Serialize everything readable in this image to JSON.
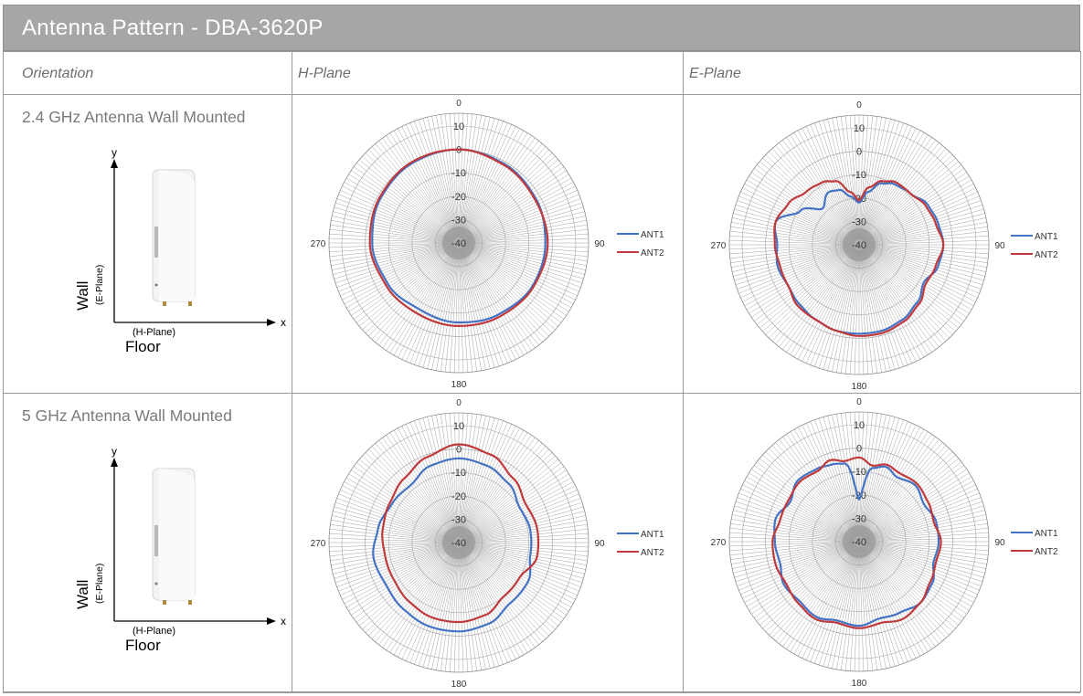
{
  "title": "Antenna Pattern - DBA-3620P",
  "headers": [
    "Orientation",
    "H-Plane",
    "E-Plane"
  ],
  "rows": [
    {
      "label": "2.4 GHz Antenna Wall Mounted",
      "diagram": {
        "wall": "Wall",
        "e_plane": "(E-Plane)",
        "h_plane": "(H-Plane)",
        "floor": "Floor",
        "y": "y",
        "x": "x"
      }
    },
    {
      "label": "5 GHz Antenna Wall Mounted",
      "diagram": {
        "wall": "Wall",
        "e_plane": "(E-Plane)",
        "h_plane": "(H-Plane)",
        "floor": "Floor",
        "y": "y",
        "x": "x"
      }
    }
  ],
  "colors": {
    "ANT1": "#4472c4",
    "ANT2": "#c0393b",
    "grid": "#8c8c8c",
    "header_bar": "#a6a6a6"
  },
  "chart_data": [
    {
      "type": "polar-line",
      "band": "2.4 GHz",
      "plane": "H-Plane",
      "angle_labels": [
        "0",
        "90",
        "180",
        "270"
      ],
      "radial_ticks": [
        "10",
        "0",
        "-10",
        "-20",
        "-30",
        "-40"
      ],
      "rlim": [
        -40,
        10
      ],
      "legend": "right",
      "series": [
        {
          "name": "ANT1",
          "angles": [
            0,
            30,
            60,
            90,
            120,
            150,
            180,
            210,
            240,
            270,
            300,
            330
          ],
          "gain_dbi": [
            0,
            -1,
            -2,
            -3,
            -3.5,
            -5,
            -6,
            -7,
            -5,
            -3,
            -1.5,
            -0.5
          ]
        },
        {
          "name": "ANT2",
          "angles": [
            0,
            30,
            60,
            90,
            120,
            150,
            180,
            210,
            240,
            270,
            300,
            330
          ],
          "gain_dbi": [
            0,
            -1.5,
            -2.5,
            -2,
            -3,
            -4,
            -4.5,
            -5,
            -4,
            -2,
            -1,
            0
          ]
        }
      ]
    },
    {
      "type": "polar-line",
      "band": "2.4 GHz",
      "plane": "E-Plane",
      "angle_labels": [
        "0",
        "90",
        "180",
        "270"
      ],
      "radial_ticks": [
        "10",
        "0",
        "-10",
        "-20",
        "-30",
        "-40"
      ],
      "rlim": [
        -40,
        10
      ],
      "legend": "right",
      "series": [
        {
          "name": "ANT1",
          "angles": [
            0,
            10,
            20,
            30,
            45,
            60,
            75,
            90,
            105,
            120,
            135,
            150,
            165,
            180,
            195,
            210,
            225,
            240,
            255,
            270,
            285,
            300,
            315,
            330,
            340,
            350
          ],
          "gain_dbi": [
            -22,
            -17,
            -12,
            -10,
            -9,
            -6,
            -5,
            -4,
            -5,
            -8,
            -5,
            -3,
            -2,
            -2,
            -2,
            -3,
            -4,
            -5,
            -4,
            -5,
            -3,
            -11,
            -18,
            -14,
            -15,
            -19
          ]
        },
        {
          "name": "ANT2",
          "angles": [
            0,
            10,
            20,
            30,
            45,
            60,
            75,
            90,
            105,
            120,
            135,
            150,
            165,
            180,
            195,
            210,
            225,
            240,
            255,
            270,
            285,
            300,
            315,
            330,
            340,
            350
          ],
          "gain_dbi": [
            -21,
            -15,
            -11,
            -9,
            -9,
            -7,
            -6,
            -4,
            -6,
            -7,
            -4,
            -2,
            -1,
            -1,
            -2,
            -3,
            -3,
            -5,
            -5,
            -4,
            -3,
            -5,
            -8,
            -9,
            -11,
            -17
          ]
        }
      ]
    },
    {
      "type": "polar-line",
      "band": "5 GHz",
      "plane": "H-Plane",
      "angle_labels": [
        "0",
        "90",
        "180",
        "270"
      ],
      "radial_ticks": [
        "10",
        "0",
        "-10",
        "-20",
        "-30",
        "-40"
      ],
      "rlim": [
        -40,
        10
      ],
      "legend": "right",
      "series": [
        {
          "name": "ANT1",
          "angles": [
            0,
            20,
            40,
            60,
            80,
            100,
            120,
            140,
            160,
            180,
            200,
            220,
            240,
            260,
            280,
            300,
            320,
            340
          ],
          "gain_dbi": [
            -4,
            -5,
            -7,
            -10,
            -9,
            -9,
            -6,
            -6,
            -3,
            -2,
            -2,
            -3,
            -4,
            -3,
            -5,
            -7,
            -8,
            -5
          ]
        },
        {
          "name": "ANT2",
          "angles": [
            0,
            20,
            40,
            60,
            80,
            100,
            120,
            140,
            160,
            180,
            200,
            220,
            240,
            260,
            280,
            300,
            320,
            340
          ],
          "gain_dbi": [
            2,
            0,
            -4,
            -7,
            -6,
            -6,
            -10,
            -10,
            -7,
            -6,
            -6,
            -7,
            -8,
            -8,
            -7,
            -6,
            -4,
            -1
          ]
        }
      ]
    },
    {
      "type": "polar-line",
      "band": "5 GHz",
      "plane": "E-Plane",
      "angle_labels": [
        "0",
        "90",
        "180",
        "270"
      ],
      "radial_ticks": [
        "10",
        "0",
        "-10",
        "-20",
        "-30",
        "-40"
      ],
      "rlim": [
        -40,
        10
      ],
      "legend": "right",
      "series": [
        {
          "name": "ANT1",
          "angles": [
            0,
            10,
            20,
            30,
            45,
            60,
            75,
            90,
            105,
            120,
            135,
            150,
            165,
            180,
            195,
            210,
            225,
            240,
            255,
            270,
            285,
            300,
            315,
            330,
            340,
            350
          ],
          "gain_dbi": [
            -22,
            -8,
            -6,
            -8,
            -6,
            -8,
            -6,
            -6,
            -7,
            -4,
            -3,
            -5,
            -6,
            -4,
            -5,
            -3,
            -4,
            -3,
            -5,
            -4,
            -3,
            -6,
            -3,
            -4,
            -5,
            -6
          ]
        },
        {
          "name": "ANT2",
          "angles": [
            0,
            10,
            20,
            30,
            45,
            60,
            75,
            90,
            105,
            120,
            135,
            150,
            165,
            180,
            195,
            210,
            225,
            240,
            255,
            270,
            285,
            300,
            315,
            330,
            340,
            350
          ],
          "gain_dbi": [
            -4,
            -7,
            -5,
            -6,
            -5,
            -6,
            -7,
            -5,
            -6,
            -5,
            -3,
            -2,
            -4,
            -3,
            -4,
            -2,
            -3,
            -4,
            -3,
            -3,
            -5,
            -5,
            -4,
            -5,
            -3,
            -5
          ]
        }
      ]
    }
  ]
}
